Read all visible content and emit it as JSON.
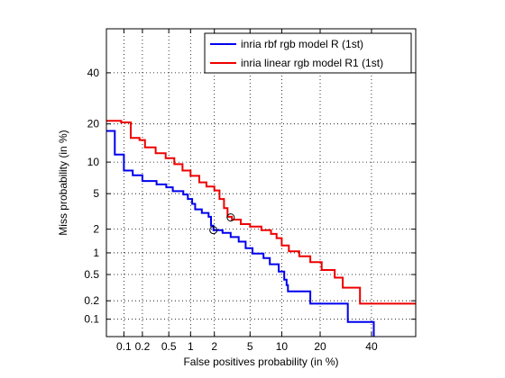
{
  "chart_data": {
    "type": "line",
    "title": "",
    "xlabel": "False positives probability (in %)",
    "ylabel": "Miss probability (in %)",
    "x_scale": "normal-deviate",
    "y_scale": "normal-deviate",
    "xlim": [
      0.05,
      60
    ],
    "ylim": [
      0.05,
      60
    ],
    "x_ticks": [
      0.1,
      0.2,
      0.5,
      1,
      2,
      5,
      10,
      20,
      40
    ],
    "x_tick_labels": [
      "0.1",
      "0.2",
      "0.5",
      "1",
      "2",
      "5",
      "10",
      "20",
      "40"
    ],
    "y_ticks": [
      0.1,
      0.2,
      0.5,
      1,
      2,
      5,
      10,
      20,
      40
    ],
    "y_tick_labels": [
      "0.1",
      "0.2",
      "0.5",
      "1",
      "2",
      "5",
      "10",
      "20",
      "40"
    ],
    "grid": true,
    "legend_position": "top-right",
    "series": [
      {
        "name": "inria rbf rgb model R (1st)",
        "color": "#0000ee",
        "points": [
          [
            0.05,
            17.8
          ],
          [
            0.07,
            17.8
          ],
          [
            0.07,
            11.6
          ],
          [
            0.1,
            11.6
          ],
          [
            0.1,
            8.4
          ],
          [
            0.14,
            8.4
          ],
          [
            0.14,
            7.6
          ],
          [
            0.2,
            7.6
          ],
          [
            0.2,
            6.7
          ],
          [
            0.33,
            6.7
          ],
          [
            0.33,
            6.2
          ],
          [
            0.46,
            6.2
          ],
          [
            0.46,
            5.8
          ],
          [
            0.57,
            5.8
          ],
          [
            0.57,
            5.3
          ],
          [
            0.8,
            5.3
          ],
          [
            0.8,
            4.9
          ],
          [
            0.92,
            4.9
          ],
          [
            0.92,
            4.4
          ],
          [
            1.05,
            4.4
          ],
          [
            1.05,
            3.9
          ],
          [
            1.15,
            3.9
          ],
          [
            1.15,
            3.4
          ],
          [
            1.4,
            3.4
          ],
          [
            1.4,
            3.1
          ],
          [
            1.7,
            3.1
          ],
          [
            1.7,
            2.8
          ],
          [
            1.82,
            2.8
          ],
          [
            1.82,
            2.2
          ],
          [
            1.95,
            2.2
          ],
          [
            1.95,
            1.95
          ],
          [
            2.5,
            1.95
          ],
          [
            2.5,
            1.8
          ],
          [
            3.1,
            1.8
          ],
          [
            3.1,
            1.6
          ],
          [
            3.8,
            1.6
          ],
          [
            3.8,
            1.4
          ],
          [
            4.5,
            1.4
          ],
          [
            4.5,
            1.15
          ],
          [
            5.3,
            1.15
          ],
          [
            5.3,
            0.98
          ],
          [
            6.8,
            0.98
          ],
          [
            6.8,
            0.85
          ],
          [
            7.8,
            0.85
          ],
          [
            7.8,
            0.7
          ],
          [
            9.4,
            0.7
          ],
          [
            9.4,
            0.55
          ],
          [
            10.5,
            0.55
          ],
          [
            10.5,
            0.42
          ],
          [
            11,
            0.42
          ],
          [
            11,
            0.35
          ],
          [
            11.3,
            0.35
          ],
          [
            11.3,
            0.28
          ],
          [
            17,
            0.28
          ],
          [
            17,
            0.18
          ],
          [
            30,
            0.18
          ],
          [
            30,
            0.09
          ],
          [
            41,
            0.09
          ],
          [
            41,
            0.05
          ]
        ]
      },
      {
        "name": "inria linear rgb model R1 (1st)",
        "color": "#ee0000",
        "points": [
          [
            0.05,
            21
          ],
          [
            0.09,
            21
          ],
          [
            0.09,
            20.5
          ],
          [
            0.13,
            20.5
          ],
          [
            0.13,
            15.8
          ],
          [
            0.18,
            15.8
          ],
          [
            0.18,
            15.2
          ],
          [
            0.22,
            15.2
          ],
          [
            0.22,
            13.3
          ],
          [
            0.32,
            13.3
          ],
          [
            0.32,
            11.9
          ],
          [
            0.45,
            11.9
          ],
          [
            0.45,
            10.8
          ],
          [
            0.6,
            10.8
          ],
          [
            0.6,
            9.6
          ],
          [
            0.78,
            9.6
          ],
          [
            0.78,
            8.4
          ],
          [
            1.0,
            8.4
          ],
          [
            1.0,
            7.5
          ],
          [
            1.3,
            7.5
          ],
          [
            1.3,
            6.5
          ],
          [
            1.6,
            6.5
          ],
          [
            1.6,
            5.9
          ],
          [
            2.0,
            5.9
          ],
          [
            2.0,
            5.4
          ],
          [
            2.3,
            5.4
          ],
          [
            2.3,
            4.4
          ],
          [
            2.6,
            4.4
          ],
          [
            2.6,
            3.5
          ],
          [
            2.85,
            3.5
          ],
          [
            2.85,
            2.8
          ],
          [
            3.2,
            2.8
          ],
          [
            3.2,
            2.6
          ],
          [
            4.0,
            2.6
          ],
          [
            4.0,
            2.3
          ],
          [
            5.0,
            2.3
          ],
          [
            5.0,
            2.15
          ],
          [
            6.5,
            2.15
          ],
          [
            6.5,
            1.95
          ],
          [
            8.0,
            1.95
          ],
          [
            8.0,
            1.75
          ],
          [
            9.0,
            1.75
          ],
          [
            9.0,
            1.55
          ],
          [
            10.0,
            1.55
          ],
          [
            10.0,
            1.25
          ],
          [
            11.5,
            1.25
          ],
          [
            11.5,
            1.05
          ],
          [
            14.0,
            1.05
          ],
          [
            14.0,
            0.9
          ],
          [
            17.0,
            0.9
          ],
          [
            17.0,
            0.75
          ],
          [
            20.5,
            0.75
          ],
          [
            20.5,
            0.58
          ],
          [
            25.0,
            0.58
          ],
          [
            25.0,
            0.45
          ],
          [
            28.0,
            0.45
          ],
          [
            28.0,
            0.32
          ],
          [
            35.0,
            0.32
          ],
          [
            35.0,
            0.18
          ],
          [
            60.0,
            0.18
          ]
        ]
      }
    ],
    "markers": [
      {
        "series": "inria rbf rgb model R (1st)",
        "x": 1.95,
        "y": 1.95
      },
      {
        "series": "inria linear rgb model R1 (1st)",
        "x": 3.1,
        "y": 2.75
      }
    ]
  }
}
